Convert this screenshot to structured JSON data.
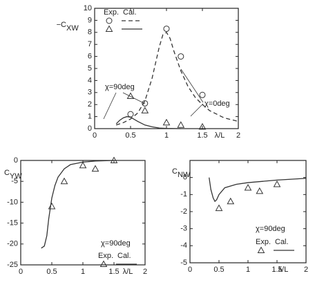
{
  "chart_data": [
    {
      "type": "line",
      "y_label": "−C",
      "y_label_sub": "XW",
      "x_label": "λ/L",
      "xlim": [
        0,
        2
      ],
      "xticks": [
        0,
        0.5,
        1,
        1.5,
        2
      ],
      "ylim": [
        0,
        10
      ],
      "yticks": [
        0,
        1,
        2,
        3,
        4,
        5,
        6,
        7,
        8,
        9,
        10
      ],
      "grid": false,
      "legend": [
        "Exp.",
        "Cal."
      ],
      "annotations": [
        "χ=0deg",
        "χ=90deg"
      ],
      "series": [
        {
          "style": "circle",
          "color": "#333333",
          "x": [
            0.5,
            0.7,
            1.0,
            1.2,
            1.5
          ],
          "values": [
            1.2,
            2.1,
            8.3,
            6.0,
            2.8
          ]
        },
        {
          "style": "triangle",
          "color": "#333333",
          "x": [
            0.5,
            0.7,
            1.0,
            1.2,
            1.5
          ],
          "values": [
            2.7,
            1.5,
            0.5,
            0.3,
            0.15
          ]
        },
        {
          "style": "dashed",
          "color": "#333333",
          "x": [
            0.3,
            0.4,
            0.5,
            0.6,
            0.7,
            0.8,
            0.9,
            0.95,
            1.0,
            1.05,
            1.1,
            1.2,
            1.3,
            1.4,
            1.5,
            1.6,
            1.8,
            2.0
          ],
          "values": [
            0.3,
            0.5,
            0.8,
            1.3,
            2.3,
            4.2,
            6.8,
            7.8,
            8.0,
            7.5,
            6.5,
            4.8,
            3.5,
            2.6,
            2.0,
            1.5,
            0.9,
            0.6
          ]
        },
        {
          "style": "solid",
          "color": "#333333",
          "x": [
            0.3,
            0.35,
            0.4,
            0.45,
            0.5,
            0.6,
            0.7,
            0.8,
            0.9,
            1.0,
            1.2
          ],
          "values": [
            0.4,
            0.7,
            0.9,
            1.0,
            0.95,
            0.6,
            0.3,
            0.15,
            0.05,
            0.02,
            0
          ]
        }
      ]
    },
    {
      "type": "line",
      "y_label": "C",
      "y_label_sub": "YW",
      "x_label": "λ/L",
      "xlim": [
        0,
        2
      ],
      "xticks": [
        0,
        0.5,
        1,
        1.5,
        2
      ],
      "ylim": [
        -25,
        0
      ],
      "yticks": [
        -25,
        -20,
        -15,
        -10,
        -5,
        0
      ],
      "grid": false,
      "legend": [
        "Exp.",
        "Cal."
      ],
      "annotations": [
        "χ=90deg"
      ],
      "series": [
        {
          "style": "triangle",
          "color": "#333333",
          "x": [
            0.5,
            0.7,
            1.0,
            1.2,
            1.5
          ],
          "values": [
            -11,
            -5,
            -1.2,
            -2,
            0
          ]
        },
        {
          "style": "solid",
          "color": "#333333",
          "x": [
            0.33,
            0.38,
            0.42,
            0.45,
            0.5,
            0.55,
            0.6,
            0.7,
            0.8,
            1.0,
            1.2,
            1.5
          ],
          "values": [
            -21,
            -20.5,
            -18,
            -14,
            -9,
            -6,
            -4,
            -2,
            -1,
            -0.4,
            -0.15,
            0
          ]
        }
      ]
    },
    {
      "type": "line",
      "y_label": "C",
      "y_label_sub": "NW",
      "x_label": "λ/L",
      "xlim": [
        0,
        2
      ],
      "xticks": [
        0,
        0.5,
        1,
        1.5,
        2
      ],
      "ylim": [
        -5,
        1
      ],
      "yticks": [
        -5,
        -4,
        -3,
        -2,
        -1,
        0
      ],
      "grid": false,
      "legend": [
        "Exp.",
        "Cal."
      ],
      "annotations": [
        "χ=90deg"
      ],
      "series": [
        {
          "style": "triangle",
          "color": "#333333",
          "x": [
            0.5,
            0.7,
            1.0,
            1.2,
            1.5
          ],
          "values": [
            -1.8,
            -1.4,
            -0.6,
            -0.8,
            -0.4
          ]
        },
        {
          "style": "solid",
          "color": "#333333",
          "x": [
            0.33,
            0.36,
            0.4,
            0.43,
            0.46,
            0.5,
            0.6,
            0.8,
            1.0,
            1.5,
            2.0
          ],
          "values": [
            0,
            -0.7,
            -1.2,
            -1.4,
            -1.3,
            -1.0,
            -0.6,
            -0.4,
            -0.3,
            -0.15,
            -0.05
          ]
        }
      ]
    }
  ]
}
